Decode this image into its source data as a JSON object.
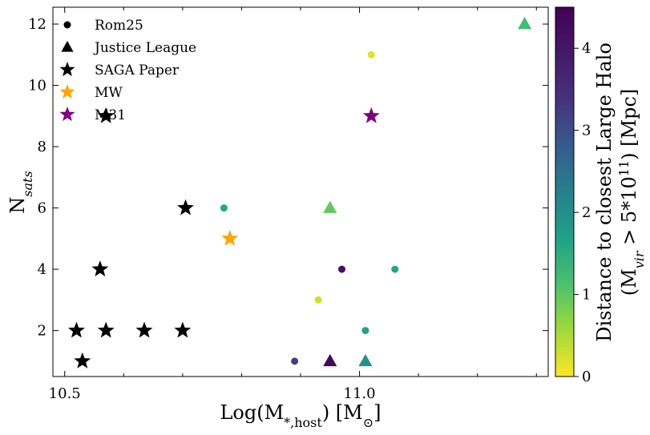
{
  "chart_data": {
    "type": "scatter",
    "xlabel": "Log(M*,host) [M⊙]",
    "ylabel": "Nsats",
    "xlim": [
      10.48,
      11.32
    ],
    "ylim": [
      0.5,
      12.55
    ],
    "x_ticks": [
      10.5,
      11.0
    ],
    "x_tick_labels": [
      "10.5",
      "11.0"
    ],
    "y_ticks": [
      2,
      4,
      6,
      8,
      10,
      12
    ],
    "y_tick_labels": [
      "2",
      "4",
      "6",
      "8",
      "10",
      "12"
    ],
    "grid": false,
    "legend_position": "top-left",
    "legend": [
      {
        "label": "Rom25",
        "marker": "circle",
        "color": "#000000"
      },
      {
        "label": "Justice League",
        "marker": "triangle",
        "color": "#000000"
      },
      {
        "label": "SAGA Paper",
        "marker": "star",
        "color": "#000000"
      },
      {
        "label": "MW",
        "marker": "star",
        "color": "#ffa500"
      },
      {
        "label": "M31",
        "marker": "star",
        "color": "#800080"
      }
    ],
    "colorbar": {
      "label_line1": "Distance to closest Large Halo",
      "label_line2": "(Mvir > 5*10¹¹) [Mpc]",
      "range": [
        0,
        4.5
      ],
      "ticks": [
        0,
        1,
        2,
        3,
        4
      ],
      "tick_labels": [
        "0",
        "1",
        "2",
        "3",
        "4"
      ],
      "colormap": "viridis_reversed"
    },
    "series": [
      {
        "name": "Rom25",
        "marker": "circle",
        "points": [
          {
            "x": 11.02,
            "y": 11,
            "c": 0.2
          },
          {
            "x": 10.77,
            "y": 6,
            "c": 1.8
          },
          {
            "x": 10.97,
            "y": 4,
            "c": 4.3
          },
          {
            "x": 11.06,
            "y": 4,
            "c": 1.8
          },
          {
            "x": 10.93,
            "y": 3,
            "c": 0.3
          },
          {
            "x": 11.01,
            "y": 2,
            "c": 1.9
          },
          {
            "x": 10.89,
            "y": 1,
            "c": 3.7
          }
        ]
      },
      {
        "name": "Justice League",
        "marker": "triangle",
        "points": [
          {
            "x": 11.28,
            "y": 12,
            "c": 1.4
          },
          {
            "x": 10.95,
            "y": 6,
            "c": 1.1
          },
          {
            "x": 10.95,
            "y": 1,
            "c": 4.4
          },
          {
            "x": 11.01,
            "y": 1,
            "c": 2.2
          }
        ]
      },
      {
        "name": "SAGA Paper",
        "marker": "star",
        "color": "#000000",
        "points": [
          {
            "x": 10.57,
            "y": 9
          },
          {
            "x": 10.705,
            "y": 6
          },
          {
            "x": 10.56,
            "y": 4
          },
          {
            "x": 10.52,
            "y": 2
          },
          {
            "x": 10.57,
            "y": 2
          },
          {
            "x": 10.635,
            "y": 2
          },
          {
            "x": 10.7,
            "y": 2
          },
          {
            "x": 10.53,
            "y": 1
          }
        ]
      },
      {
        "name": "MW",
        "marker": "star",
        "color": "#ffa500",
        "points": [
          {
            "x": 10.78,
            "y": 5
          }
        ]
      },
      {
        "name": "M31",
        "marker": "star",
        "color": "#800080",
        "points": [
          {
            "x": 11.02,
            "y": 9
          }
        ]
      }
    ]
  }
}
